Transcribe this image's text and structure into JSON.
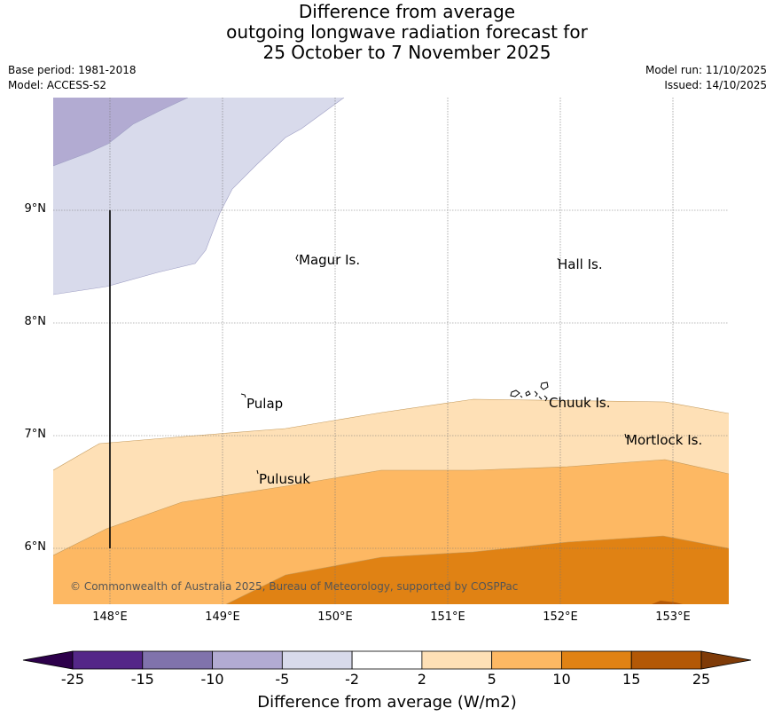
{
  "title": {
    "line1": "Difference from average",
    "line2": "outgoing longwave radiation forecast for",
    "line3": "25 October to 7 November 2025"
  },
  "meta": {
    "base_period": "Base period: 1981-2018",
    "model": "Model: ACCESS-S2",
    "model_run": "Model run: 11/10/2025",
    "issued": "Issued: 14/10/2025"
  },
  "map": {
    "latitudes": [
      "9°N",
      "8°N",
      "7°N",
      "6°N"
    ],
    "longitudes": [
      "148°E",
      "149°E",
      "150°E",
      "151°E",
      "152°E",
      "153°E"
    ],
    "places": [
      "Magur Is.",
      "Hall Is.",
      "Pulap",
      "Chuuk Is.",
      "Mortlock Is.",
      "Pulusuk"
    ],
    "copyright": "© Commonwealth of Australia 2025, Bureau of Meteorology, supported by COSPPac"
  },
  "colorbar": {
    "title": "Difference from average (W/m2)",
    "ticks": [
      "-25",
      "-15",
      "-10",
      "-5",
      "-2",
      "2",
      "5",
      "10",
      "15",
      "25"
    ],
    "colors": [
      "#2d004b",
      "#542788",
      "#8073ac",
      "#b2abd2",
      "#d8daeb",
      "#ffffff",
      "#fee0b6",
      "#fdb863",
      "#e08214",
      "#b35806",
      "#7f3b08"
    ]
  }
}
